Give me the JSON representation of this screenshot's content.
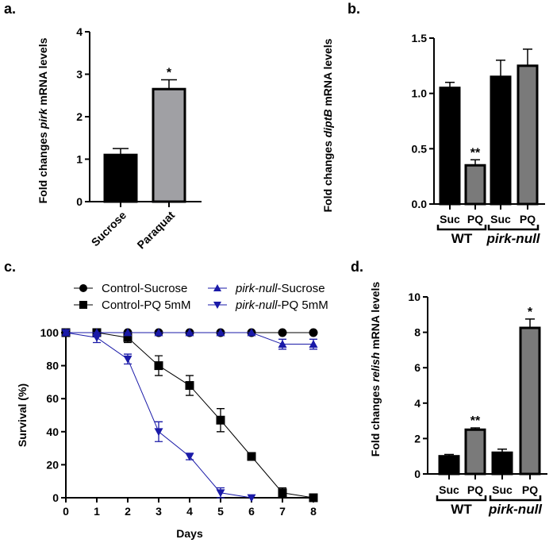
{
  "chart_data": [
    {
      "panel": "a.",
      "type": "bar",
      "ylabel_parts": [
        "Fold changes ",
        "pirk",
        " mRNA levels"
      ],
      "categories": [
        "Sucrose",
        "Paraquat"
      ],
      "values": [
        1.1,
        2.65
      ],
      "errors": [
        0.15,
        0.22
      ],
      "significance": [
        "",
        "*"
      ],
      "colors": [
        "#000000",
        "#a0a0a4"
      ],
      "ylim": [
        0,
        4
      ],
      "yticks": [
        "0",
        "1",
        "2",
        "3",
        "4"
      ]
    },
    {
      "panel": "b.",
      "type": "bar",
      "ylabel_parts": [
        "Fold changes ",
        "diptB",
        " mRNA levels"
      ],
      "categories": [
        "Suc",
        "PQ",
        "Suc",
        "PQ"
      ],
      "groups": [
        "WT",
        "pirk-null"
      ],
      "values": [
        1.05,
        0.35,
        1.15,
        1.25
      ],
      "errors": [
        0.05,
        0.05,
        0.15,
        0.15
      ],
      "significance": [
        "",
        "**",
        "",
        ""
      ],
      "colors": [
        "#000000",
        "#7a7a7a",
        "#000000",
        "#7a7a7a"
      ],
      "ylim": [
        0,
        1.5
      ],
      "yticks": [
        "0.0",
        "0.5",
        "1.0",
        "1.5"
      ]
    },
    {
      "panel": "c.",
      "type": "line",
      "xlabel": "Days",
      "ylabel": "Survival (%)",
      "x": [
        0,
        1,
        2,
        3,
        4,
        5,
        6,
        7,
        8
      ],
      "xlim": [
        0,
        8
      ],
      "ylim": [
        0,
        100
      ],
      "yticks": [
        "0",
        "20",
        "40",
        "60",
        "80",
        "100"
      ],
      "xticks": [
        "0",
        "1",
        "2",
        "3",
        "4",
        "5",
        "6",
        "7",
        "8"
      ],
      "legend_position": "top",
      "series": [
        {
          "name_parts": [
            "",
            "Control-Sucrose"
          ],
          "color": "#000000",
          "marker": "circle",
          "values": [
            100,
            100,
            100,
            100,
            100,
            100,
            100,
            100,
            100
          ],
          "errors": [
            0,
            0,
            0,
            0,
            0,
            0,
            0,
            0,
            0
          ]
        },
        {
          "name_parts": [
            "",
            "Control-PQ 5mM"
          ],
          "color": "#000000",
          "marker": "square",
          "values": [
            100,
            100,
            97,
            80,
            68,
            47,
            25,
            3,
            0
          ],
          "errors": [
            0,
            0,
            3,
            6,
            6,
            7,
            2,
            3,
            0
          ]
        },
        {
          "name_parts": [
            "pirk-null",
            "-Sucrose"
          ],
          "color": "#1a1aa8",
          "marker": "triangle-up",
          "values": [
            100,
            100,
            100,
            100,
            100,
            100,
            100,
            93,
            93
          ],
          "errors": [
            0,
            0,
            0,
            0,
            0,
            0,
            0,
            3,
            3
          ]
        },
        {
          "name_parts": [
            "pirk-null",
            "-PQ 5mM"
          ],
          "color": "#1a1aa8",
          "marker": "triangle-down",
          "values": [
            100,
            97,
            84,
            40,
            25,
            3,
            0,
            null,
            null
          ],
          "errors": [
            0,
            3,
            3,
            6,
            2,
            3,
            0,
            0,
            0
          ]
        }
      ]
    },
    {
      "panel": "d.",
      "type": "bar",
      "ylabel_parts": [
        "Fold changes ",
        "relish",
        " mRNA levels"
      ],
      "categories": [
        "Suc",
        "PQ",
        "Suc",
        "PQ"
      ],
      "groups": [
        "WT",
        "pirk-null"
      ],
      "values": [
        1.0,
        2.5,
        1.2,
        8.25
      ],
      "errors": [
        0.1,
        0.1,
        0.2,
        0.5
      ],
      "significance": [
        "",
        "**",
        "",
        "*"
      ],
      "colors": [
        "#000000",
        "#7a7a7a",
        "#000000",
        "#7a7a7a"
      ],
      "ylim": [
        0,
        10
      ],
      "yticks": [
        "0",
        "2",
        "4",
        "6",
        "8",
        "10"
      ]
    }
  ]
}
